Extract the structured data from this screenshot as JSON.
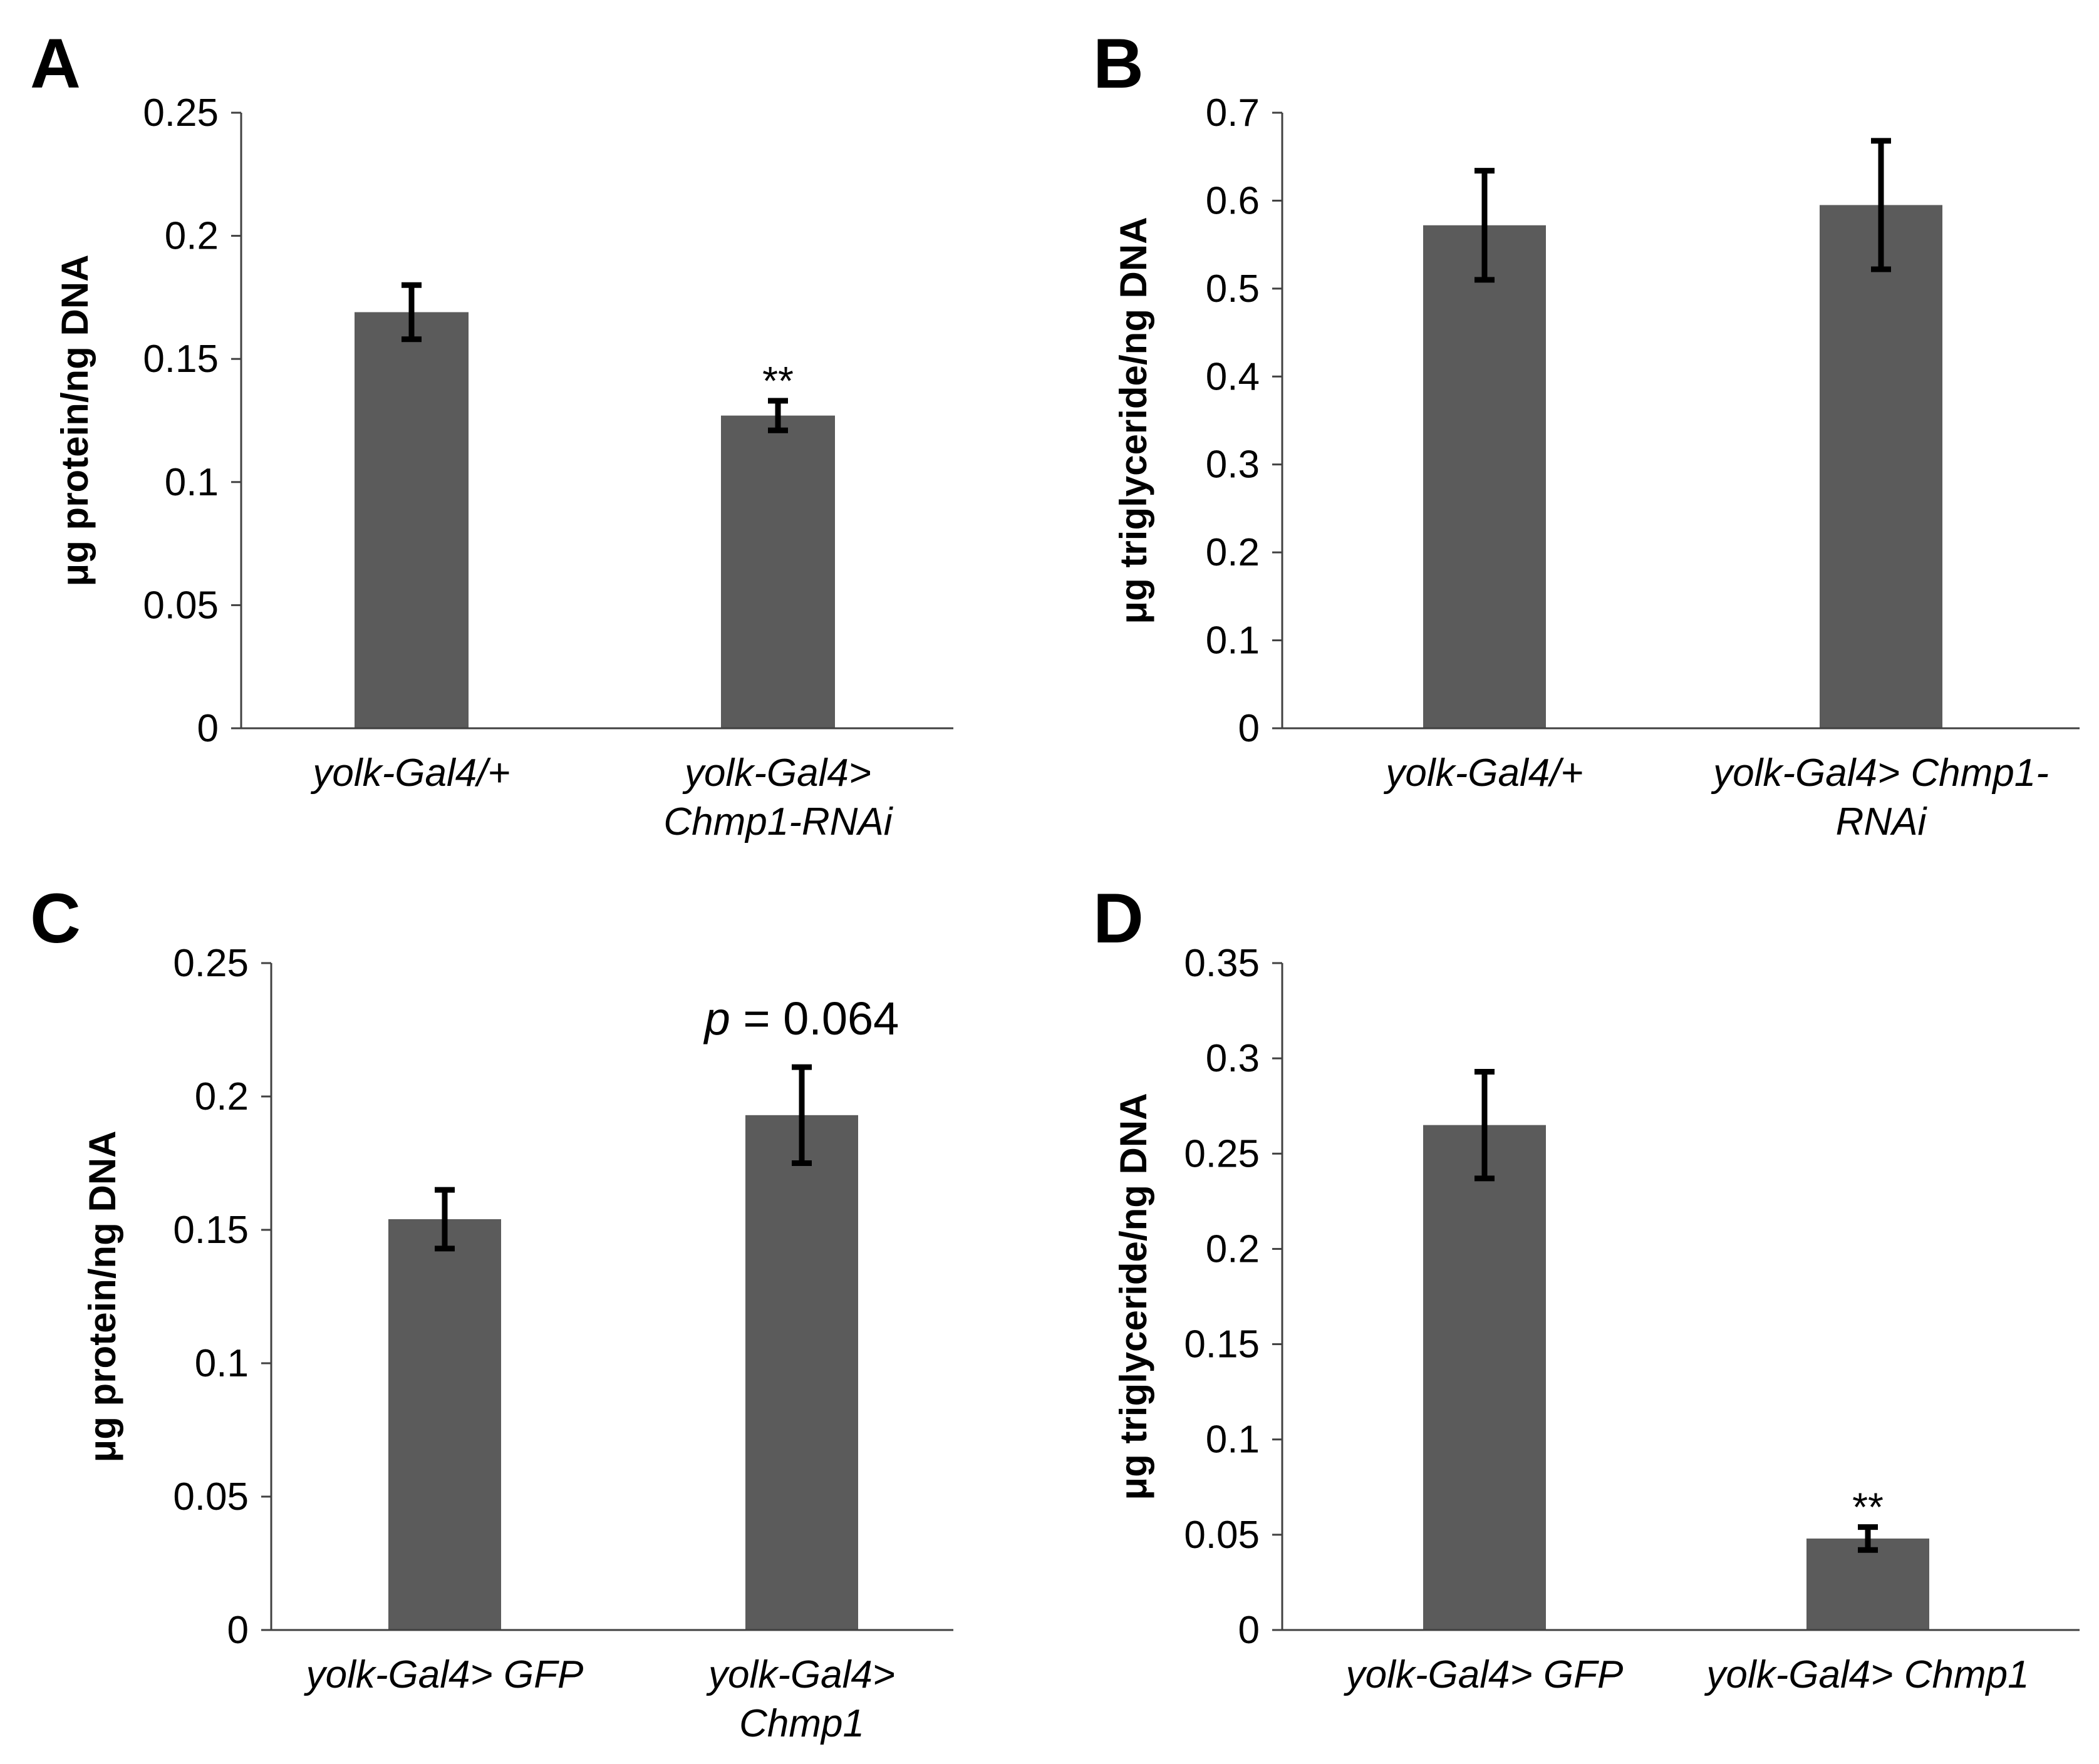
{
  "colors": {
    "bar": "#5b5b5b",
    "axis": "#404040",
    "error": "#000000"
  },
  "chart_data": [
    {
      "panel": "A",
      "type": "bar",
      "ylabel": "μg protein/ng DNA",
      "ylim": [
        0,
        0.25
      ],
      "ticks": [
        "0",
        "0.05",
        "0.1",
        "0.15",
        "0.2",
        "0.25"
      ],
      "categories": [
        {
          "lines": [
            "yolk-Gal4/+"
          ]
        },
        {
          "lines": [
            "yolk-Gal4>",
            "Chmp1-RNAi"
          ]
        }
      ],
      "values": [
        0.169,
        0.127
      ],
      "errors": [
        0.011,
        0.006
      ],
      "annotations": [
        "",
        "**"
      ]
    },
    {
      "panel": "B",
      "type": "bar",
      "ylabel": "μg triglyceride/ng DNA",
      "ylim": [
        0,
        0.7
      ],
      "ticks": [
        "0",
        "0.1",
        "0.2",
        "0.3",
        "0.4",
        "0.5",
        "0.6",
        "0.7"
      ],
      "categories": [
        {
          "lines": [
            "yolk-Gal4/+"
          ]
        },
        {
          "lines": [
            "yolk-Gal4> Chmp1-",
            "RNAi"
          ]
        }
      ],
      "values": [
        0.572,
        0.595
      ],
      "errors": [
        0.062,
        0.073
      ],
      "annotations": [
        "",
        ""
      ]
    },
    {
      "panel": "C",
      "type": "bar",
      "ylabel": "μg protein/ng DNA",
      "ylim": [
        0,
        0.25
      ],
      "ticks": [
        "0",
        "0.05",
        "0.1",
        "0.15",
        "0.2",
        "0.25"
      ],
      "categories": [
        {
          "lines": [
            "yolk-Gal4> GFP"
          ]
        },
        {
          "lines": [
            "yolk-Gal4>",
            "Chmp1"
          ]
        }
      ],
      "values": [
        0.154,
        0.193
      ],
      "errors": [
        0.011,
        0.018
      ],
      "annotations": [
        "",
        ""
      ],
      "pvalue": {
        "p": "p",
        "rest": " = 0.064"
      }
    },
    {
      "panel": "D",
      "type": "bar",
      "ylabel": "μg triglyceride/ng DNA",
      "ylim": [
        0,
        0.35
      ],
      "ticks": [
        "0",
        "0.05",
        "0.1",
        "0.15",
        "0.2",
        "0.25",
        "0.3",
        "0.35"
      ],
      "categories": [
        {
          "lines": [
            "yolk-Gal4> GFP"
          ]
        },
        {
          "lines": [
            "yolk-Gal4> Chmp1"
          ]
        }
      ],
      "values": [
        0.265,
        0.048
      ],
      "errors": [
        0.028,
        0.006
      ],
      "annotations": [
        "",
        "**"
      ]
    }
  ]
}
